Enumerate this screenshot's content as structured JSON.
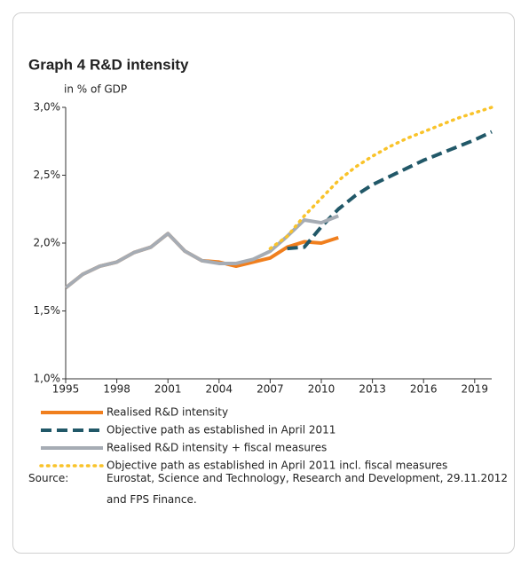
{
  "chart_data": {
    "type": "line",
    "title": "Graph 4  R&D intensity",
    "subtitle": "in % of GDP",
    "x": [
      1995,
      1996,
      1997,
      1998,
      1999,
      2000,
      2001,
      2002,
      2003,
      2004,
      2005,
      2006,
      2007,
      2008,
      2009,
      2010,
      2011,
      2012,
      2013,
      2014,
      2015,
      2016,
      2017,
      2018,
      2019,
      2020
    ],
    "xlim": [
      1995,
      2020
    ],
    "xticks": [
      1995,
      1998,
      2001,
      2004,
      2007,
      2010,
      2013,
      2016,
      2019
    ],
    "ylim": [
      1,
      3
    ],
    "yticks": [
      {
        "value": 1,
        "label": "1,0%"
      },
      {
        "value": 1.5,
        "label": "1,5%"
      },
      {
        "value": 2,
        "label": "2,0%"
      },
      {
        "value": 2.5,
        "label": "2,5%"
      },
      {
        "value": 3,
        "label": "3,0%"
      }
    ],
    "grid": false,
    "series": [
      {
        "name": "Realised R&D intensity",
        "color": "#f07f1e",
        "style": "solid",
        "values": [
          1.67,
          1.77,
          1.83,
          1.86,
          1.93,
          1.97,
          2.07,
          1.94,
          1.87,
          1.86,
          1.83,
          1.86,
          1.89,
          1.97,
          2.01,
          2.0,
          2.04,
          null,
          null,
          null,
          null,
          null,
          null,
          null,
          null,
          null
        ]
      },
      {
        "name": "Objective path as established in April 2011",
        "color": "#215868",
        "style": "dashed",
        "values": [
          null,
          null,
          null,
          null,
          null,
          null,
          null,
          null,
          null,
          null,
          null,
          null,
          null,
          1.96,
          1.97,
          2.12,
          2.25,
          2.35,
          2.43,
          2.49,
          2.55,
          2.61,
          2.66,
          2.71,
          2.76,
          2.82
        ]
      },
      {
        "name": "Realised R&D intensity + fiscal measures",
        "color": "#a6acb4",
        "style": "solid",
        "values": [
          1.67,
          1.77,
          1.83,
          1.86,
          1.93,
          1.97,
          2.07,
          1.94,
          1.87,
          1.85,
          1.85,
          1.88,
          1.94,
          2.05,
          2.17,
          2.15,
          2.2,
          null,
          null,
          null,
          null,
          null,
          null,
          null,
          null,
          null
        ]
      },
      {
        "name": "Objective path as established in April 2011 incl. fiscal measures",
        "color": "#f9c32a",
        "style": "dotted",
        "values": [
          null,
          null,
          null,
          null,
          null,
          null,
          null,
          null,
          null,
          null,
          null,
          null,
          1.96,
          2.05,
          2.2,
          2.33,
          2.46,
          2.56,
          2.64,
          2.71,
          2.77,
          2.82,
          2.87,
          2.92,
          2.96,
          3.0
        ]
      }
    ],
    "source_label": "Source:",
    "source": "Eurostat, Science and Technology, Research and Development, 29.11.2012 and FPS Finance."
  }
}
